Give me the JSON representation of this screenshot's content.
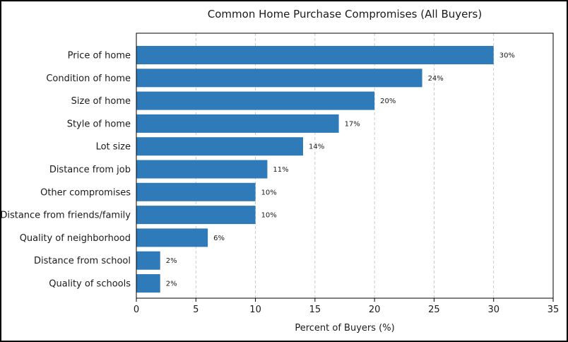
{
  "chart_data": {
    "type": "bar",
    "orientation": "horizontal",
    "title": "Common Home Purchase Compromises (All Buyers)",
    "xlabel": "Percent of Buyers (%)",
    "ylabel": "",
    "xlim": [
      0,
      35
    ],
    "xticks": [
      0,
      5,
      10,
      15,
      20,
      25,
      30,
      35
    ],
    "grid": "vertical-dashed",
    "bar_color": "#2f7ab9",
    "categories": [
      "Price of home",
      "Condition of home",
      "Size of home",
      "Style of home",
      "Lot size",
      "Distance from job",
      "Other compromises",
      "Distance from friends/family",
      "Quality of neighborhood",
      "Distance from school",
      "Quality of schools"
    ],
    "values": [
      30,
      24,
      20,
      17,
      14,
      11,
      10,
      10,
      6,
      2,
      2
    ],
    "data_labels": [
      "30%",
      "24%",
      "20%",
      "17%",
      "14%",
      "11%",
      "10%",
      "10%",
      "6%",
      "2%",
      "2%"
    ]
  }
}
